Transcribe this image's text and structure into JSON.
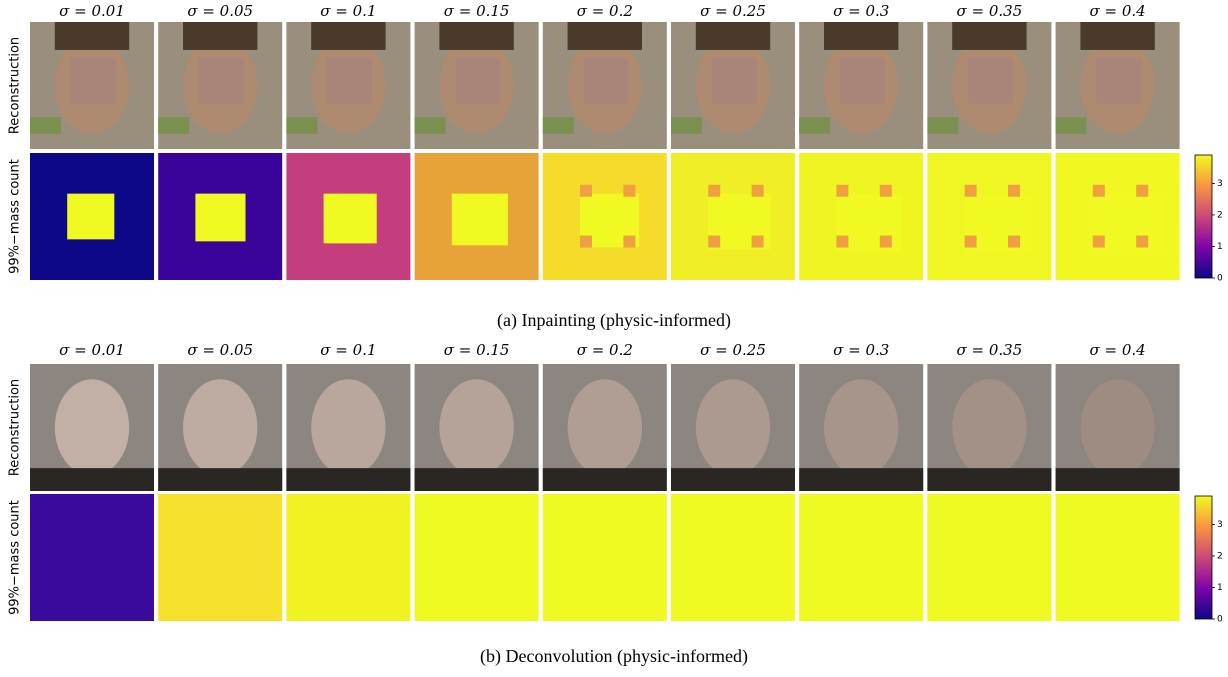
{
  "panels": [
    {
      "column_titles": [
        "σ = 0.01",
        "σ = 0.05",
        "σ = 0.1",
        "σ = 0.15",
        "σ = 0.2",
        "σ = 0.25",
        "σ = 0.3",
        "σ = 0.35",
        "σ = 0.4"
      ],
      "row_labels": [
        "Reconstruction",
        "99%−mass count"
      ],
      "colorbar": {
        "range": [
          0,
          3.9
        ],
        "ticks": [
          0,
          1,
          2,
          3
        ]
      },
      "caption": "(a) Inpainting (physic-informed)"
    },
    {
      "column_titles": [
        "σ = 0.01",
        "σ = 0.05",
        "σ = 0.1",
        "σ = 0.15",
        "σ = 0.2",
        "σ = 0.25",
        "σ = 0.3",
        "σ = 0.35",
        "σ = 0.4"
      ],
      "row_labels": [
        "Reconstruction",
        "99%−mass count"
      ],
      "colorbar": {
        "range": [
          0,
          3.9
        ],
        "ticks": [
          0,
          1,
          2,
          3
        ]
      },
      "caption": "(b) Deconvolution (physic-informed)"
    }
  ]
}
